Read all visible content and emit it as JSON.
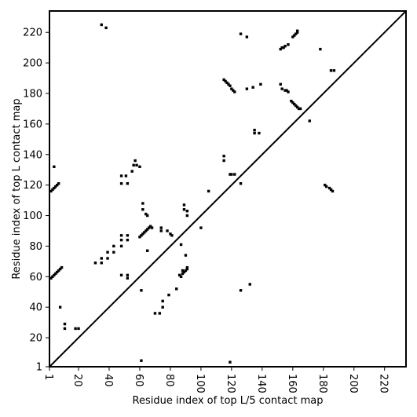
{
  "chart_data": {
    "type": "scatter",
    "xlabel": "Residue index of top L/5 contact map",
    "ylabel": "Residue index of top L contact map",
    "xlim": [
      1,
      234
    ],
    "ylim": [
      1,
      234
    ],
    "x_ticks": [
      1,
      20,
      40,
      60,
      80,
      100,
      120,
      140,
      160,
      180,
      200,
      220
    ],
    "y_ticks": [
      1,
      20,
      40,
      60,
      80,
      100,
      120,
      140,
      160,
      180,
      200,
      220
    ],
    "diagonal": true,
    "marker": "square",
    "marker_color": "#000000",
    "points": [
      [
        2,
        116
      ],
      [
        3,
        117
      ],
      [
        4,
        118
      ],
      [
        5,
        119
      ],
      [
        6,
        120
      ],
      [
        7,
        121
      ],
      [
        4,
        132
      ],
      [
        2,
        59
      ],
      [
        3,
        60
      ],
      [
        4,
        61
      ],
      [
        5,
        62
      ],
      [
        6,
        63
      ],
      [
        7,
        64
      ],
      [
        8,
        65
      ],
      [
        9,
        66
      ],
      [
        8,
        40
      ],
      [
        11,
        26
      ],
      [
        11,
        29
      ],
      [
        18,
        26
      ],
      [
        20,
        26
      ],
      [
        35,
        225
      ],
      [
        38,
        223
      ],
      [
        31,
        69
      ],
      [
        35,
        69
      ],
      [
        35,
        72
      ],
      [
        39,
        72
      ],
      [
        39,
        76
      ],
      [
        43,
        76
      ],
      [
        43,
        80
      ],
      [
        48,
        80
      ],
      [
        48,
        84
      ],
      [
        48,
        87
      ],
      [
        52,
        84
      ],
      [
        52,
        87
      ],
      [
        48,
        61
      ],
      [
        52,
        59
      ],
      [
        52,
        61
      ],
      [
        48,
        121
      ],
      [
        48,
        126
      ],
      [
        51,
        126
      ],
      [
        52,
        121
      ],
      [
        55,
        129
      ],
      [
        56,
        133
      ],
      [
        57,
        136
      ],
      [
        58,
        133
      ],
      [
        60,
        132
      ],
      [
        60,
        86
      ],
      [
        61,
        87
      ],
      [
        62,
        88
      ],
      [
        63,
        89
      ],
      [
        64,
        90
      ],
      [
        65,
        91
      ],
      [
        66,
        92
      ],
      [
        67,
        93
      ],
      [
        68,
        92
      ],
      [
        62,
        104
      ],
      [
        62,
        108
      ],
      [
        64,
        101
      ],
      [
        65,
        100
      ],
      [
        65,
        77
      ],
      [
        61,
        51
      ],
      [
        61,
        5
      ],
      [
        70,
        36
      ],
      [
        73,
        36
      ],
      [
        75,
        40
      ],
      [
        75,
        44
      ],
      [
        79,
        48
      ],
      [
        84,
        52
      ],
      [
        74,
        90
      ],
      [
        74,
        92
      ],
      [
        78,
        90
      ],
      [
        80,
        88
      ],
      [
        81,
        87
      ],
      [
        86,
        61
      ],
      [
        87,
        60
      ],
      [
        88,
        62
      ],
      [
        88,
        64
      ],
      [
        89,
        63
      ],
      [
        90,
        64
      ],
      [
        91,
        65
      ],
      [
        91,
        66
      ],
      [
        87,
        81
      ],
      [
        90,
        74
      ],
      [
        89,
        104
      ],
      [
        89,
        107
      ],
      [
        91,
        100
      ],
      [
        91,
        103
      ],
      [
        100,
        92
      ],
      [
        105,
        116
      ],
      [
        115,
        189
      ],
      [
        116,
        188
      ],
      [
        117,
        187
      ],
      [
        118,
        186
      ],
      [
        119,
        185
      ],
      [
        120,
        183
      ],
      [
        121,
        182
      ],
      [
        122,
        181
      ],
      [
        115,
        136
      ],
      [
        115,
        139
      ],
      [
        119,
        127
      ],
      [
        120,
        127
      ],
      [
        122,
        127
      ],
      [
        126,
        219
      ],
      [
        126,
        121
      ],
      [
        126,
        51
      ],
      [
        130,
        217
      ],
      [
        130,
        183
      ],
      [
        132,
        55
      ],
      [
        134,
        184
      ],
      [
        135,
        154
      ],
      [
        135,
        156
      ],
      [
        138,
        154
      ],
      [
        139,
        186
      ],
      [
        119,
        4
      ],
      [
        152,
        186
      ],
      [
        153,
        183
      ],
      [
        155,
        182
      ],
      [
        156,
        182
      ],
      [
        157,
        181
      ],
      [
        152,
        209
      ],
      [
        153,
        210
      ],
      [
        154,
        210
      ],
      [
        155,
        211
      ],
      [
        157,
        212
      ],
      [
        160,
        217
      ],
      [
        161,
        218
      ],
      [
        162,
        219
      ],
      [
        163,
        220
      ],
      [
        163,
        221
      ],
      [
        159,
        175
      ],
      [
        160,
        174
      ],
      [
        161,
        173
      ],
      [
        162,
        172
      ],
      [
        163,
        171
      ],
      [
        164,
        170
      ],
      [
        165,
        170
      ],
      [
        171,
        162
      ],
      [
        178,
        209
      ],
      [
        181,
        120
      ],
      [
        182,
        119
      ],
      [
        184,
        118
      ],
      [
        185,
        117
      ],
      [
        186,
        116
      ],
      [
        185,
        195
      ],
      [
        187,
        195
      ]
    ]
  }
}
